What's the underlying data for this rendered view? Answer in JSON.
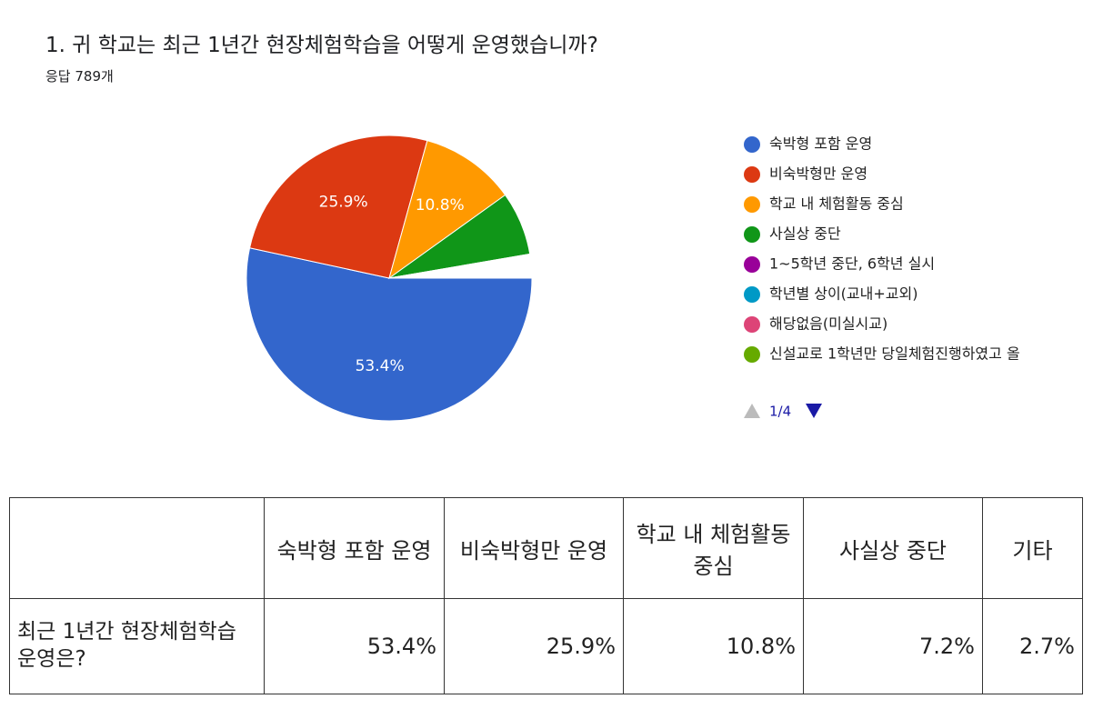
{
  "title": "1. 귀 학교는 최근 1년간 현장체험학습을 어떻게 운영했습니까?",
  "subtitle": "응답 789개",
  "chart_data": {
    "type": "pie",
    "categories": [
      "숙박형 포함 운영",
      "비숙박형만 운영",
      "학교 내 체험활동 중심",
      "사실상 중단",
      "1~5학년 중단, 6학년 실시",
      "학년별 상이(교내+교외)",
      "해당없음(미실시교)",
      "신설교로 1학년만 당일체험진행하였고 올"
    ],
    "values": [
      53.4,
      25.9,
      10.8,
      7.2,
      0.1,
      0.1,
      0.1,
      0.1
    ],
    "value_labels": [
      "53.4%",
      "25.9%",
      "10.8%",
      null,
      null,
      null,
      null,
      null
    ],
    "colors": [
      "#3366cc",
      "#dc3912",
      "#ff9900",
      "#109618",
      "#990099",
      "#0099c6",
      "#dd4477",
      "#66aa00"
    ],
    "legend_page": "1/4"
  },
  "table": {
    "columns": [
      "숙박형 포함 운영",
      "비숙박형만 운영",
      "학교 내 체험활동 중심",
      "사실상 중단",
      "기타"
    ],
    "rows": [
      [
        "최근 1년간 현장체험학습 운영은?",
        "53.4%",
        "25.9%",
        "10.8%",
        "7.2%",
        "2.7%"
      ]
    ]
  }
}
